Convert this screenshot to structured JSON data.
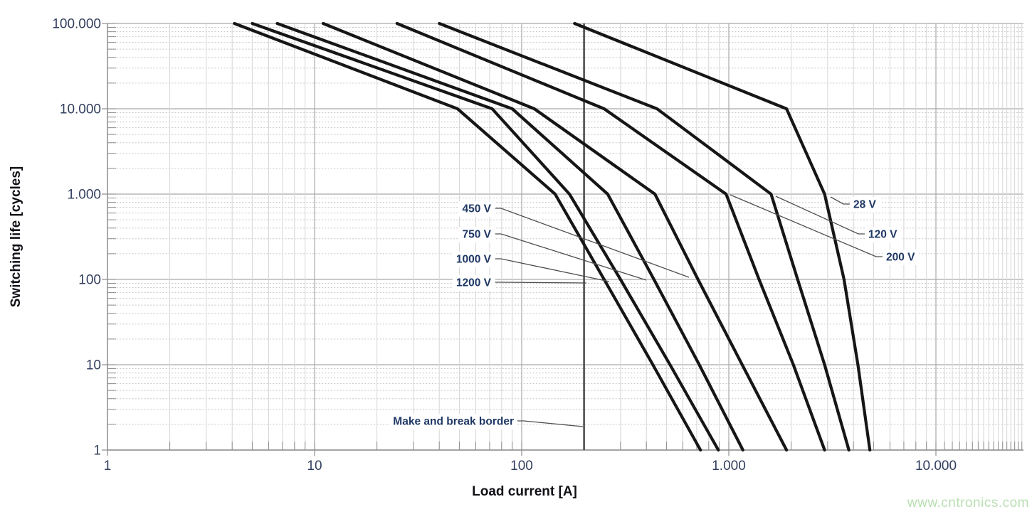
{
  "watermark": "www.cntronics.com",
  "axes": {
    "x": {
      "label": "Load current [A]",
      "scale": "log",
      "ticks": [
        {
          "label": "1",
          "value": 1
        },
        {
          "label": "10",
          "value": 10
        },
        {
          "label": "100",
          "value": 100
        },
        {
          "label": "1.000",
          "value": 1000
        },
        {
          "label": "10.000",
          "value": 10000
        }
      ]
    },
    "y": {
      "label": "Switching life [cycles]",
      "scale": "log",
      "ticks": [
        {
          "label": "1",
          "value": 1
        },
        {
          "label": "10",
          "value": 10
        },
        {
          "label": "100",
          "value": 100
        },
        {
          "label": "1.000",
          "value": 1000
        },
        {
          "label": "10.000",
          "value": 10000
        },
        {
          "label": "100.000",
          "value": 100000
        }
      ]
    }
  },
  "chart_data": {
    "type": "line",
    "title": "",
    "xlabel": "Load current [A]",
    "ylabel": "Switching life [cycles]",
    "x_scale": "log",
    "y_scale": "log",
    "xlim": [
      1,
      26000
    ],
    "ylim": [
      1,
      100000
    ],
    "grid": "log major + minor",
    "legend_position": "inline-labels",
    "series": [
      {
        "name": "28 V",
        "points": [
          [
            180,
            100000
          ],
          [
            1900,
            10000
          ],
          [
            2900,
            1000
          ],
          [
            3600,
            100
          ],
          [
            4200,
            10
          ],
          [
            4800,
            1
          ]
        ]
      },
      {
        "name": "120 V",
        "points": [
          [
            40,
            100000
          ],
          [
            450,
            10000
          ],
          [
            1600,
            1000
          ],
          [
            2150,
            100
          ],
          [
            2900,
            10
          ],
          [
            3800,
            1
          ]
        ]
      },
      {
        "name": "200 V",
        "points": [
          [
            25,
            100000
          ],
          [
            250,
            10000
          ],
          [
            970,
            1000
          ],
          [
            1400,
            100
          ],
          [
            2050,
            10
          ],
          [
            2900,
            1
          ]
        ]
      },
      {
        "name": "450 V",
        "points": [
          [
            11,
            100000
          ],
          [
            115,
            10000
          ],
          [
            440,
            1000
          ],
          [
            710,
            100
          ],
          [
            1160,
            10
          ],
          [
            1900,
            1
          ]
        ]
      },
      {
        "name": "750 V",
        "points": [
          [
            6.6,
            100000
          ],
          [
            90,
            10000
          ],
          [
            260,
            1000
          ],
          [
            435,
            100
          ],
          [
            720,
            10
          ],
          [
            1170,
            1
          ]
        ]
      },
      {
        "name": "1000 V",
        "points": [
          [
            5,
            100000
          ],
          [
            72,
            10000
          ],
          [
            170,
            1000
          ],
          [
            300,
            100
          ],
          [
            520,
            10
          ],
          [
            890,
            1
          ]
        ]
      },
      {
        "name": "1200 V",
        "points": [
          [
            4.1,
            100000
          ],
          [
            49,
            10000
          ],
          [
            145,
            1000
          ],
          [
            250,
            100
          ],
          [
            430,
            10
          ],
          [
            730,
            1
          ]
        ]
      }
    ],
    "annotations": [
      {
        "text": "450 V",
        "side": "left"
      },
      {
        "text": "750 V",
        "side": "left"
      },
      {
        "text": "1000 V",
        "side": "left"
      },
      {
        "text": "1200 V",
        "side": "left"
      },
      {
        "text": "28 V",
        "side": "right"
      },
      {
        "text": "120 V",
        "side": "right"
      },
      {
        "text": "200 V",
        "side": "right"
      }
    ],
    "border_line": {
      "label": "Make and break border",
      "current_a": 200
    }
  },
  "colors": {
    "curve": "#161616",
    "grid_major": "#a9a9a9",
    "grid_minor_h": "#c6c6c6",
    "grid_minor_v": "#d6d6d6",
    "axis": "#8d8d8d",
    "border_line": "#4f4f4f",
    "leader": "#4d4d4d",
    "annotation_text": "#1f3864",
    "tick_text": "#333f5f",
    "axis_title_text": "#101016",
    "watermark": "#b9dfb2"
  }
}
